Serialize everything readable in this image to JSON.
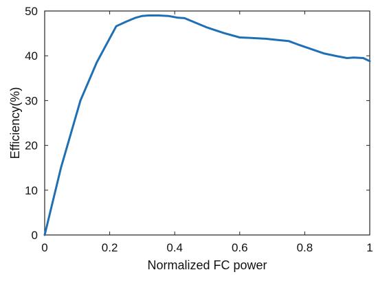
{
  "chart_data": {
    "type": "line",
    "title": "",
    "xlabel": "Normalized FC power",
    "ylabel": "Efficiency(%)",
    "xlim": [
      0,
      1
    ],
    "ylim": [
      0,
      50
    ],
    "xticks": [
      0,
      0.2,
      0.4,
      0.6,
      0.8,
      1
    ],
    "xtick_labels": [
      "0",
      "0.2",
      "0.4",
      "0.6",
      "0.8",
      "1"
    ],
    "yticks": [
      0,
      10,
      20,
      30,
      40,
      50
    ],
    "ytick_labels": [
      "0",
      "10",
      "20",
      "30",
      "40",
      "50"
    ],
    "grid": false,
    "box": true,
    "series": [
      {
        "color": "#1f6fb5",
        "x": [
          0,
          0.05,
          0.11,
          0.16,
          0.22,
          0.25,
          0.28,
          0.3,
          0.32,
          0.35,
          0.38,
          0.41,
          0.43,
          0.46,
          0.5,
          0.55,
          0.6,
          0.63,
          0.68,
          0.72,
          0.75,
          0.78,
          0.82,
          0.86,
          0.9,
          0.93,
          0.95,
          0.98,
          1.0
        ],
        "y": [
          0,
          15,
          30,
          38.5,
          46.6,
          47.6,
          48.5,
          48.9,
          49,
          49,
          48.9,
          48.5,
          48.4,
          47.5,
          46.3,
          45.1,
          44.1,
          44,
          43.8,
          43.5,
          43.3,
          42.5,
          41.5,
          40.5,
          39.9,
          39.5,
          39.6,
          39.5,
          38.8
        ]
      }
    ]
  }
}
